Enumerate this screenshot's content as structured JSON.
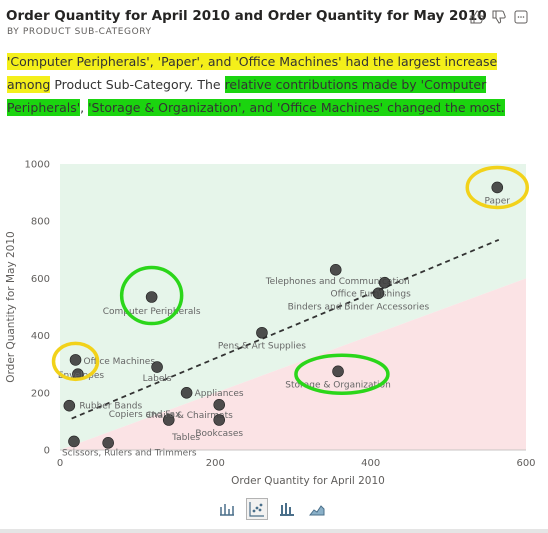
{
  "header": {
    "title": "Order Quantity for April 2010 and Order Quantity for May 2010",
    "subtitle": "BY PRODUCT SUB-CATEGORY",
    "icons": [
      "thumbs-up-icon",
      "thumbs-down-icon",
      "more-options-icon"
    ]
  },
  "narrative": {
    "part1": "'Computer Peripherals', 'Paper', and 'Office Machines' had the largest increase among",
    "part2": "Product Sub-Category",
    "part3": ". The ",
    "part4": "relative contributions made by 'Computer Peripherals'",
    "part5": ", ",
    "part6": "'Storage & Organization', and 'Office Machines' changed the most.",
    "part7": ""
  },
  "colors": {
    "highlight_yellow": "#f4ef1a",
    "highlight_green": "#1bd40f",
    "region_above": "#e6f5ea",
    "region_below": "#fbe3e5",
    "marker": "#3b3b3b",
    "circle_yellow": "#f2d21a",
    "circle_green": "#2bd61a"
  },
  "chart_data": {
    "type": "scatter",
    "title": "Order Quantity for April 2010 and Order Quantity for May 2010",
    "xlabel": "Order Quantity for April 2010",
    "ylabel": "Order Quantity for May 2010",
    "xlim": [
      0,
      600
    ],
    "ylim": [
      0,
      1000
    ],
    "xticks": [
      0,
      200,
      400,
      600
    ],
    "yticks": [
      0,
      200,
      400,
      600,
      800,
      1000
    ],
    "grid": false,
    "trendline": {
      "x": [
        15,
        565
      ],
      "y": [
        110,
        735
      ]
    },
    "points": [
      {
        "label": "Paper",
        "x": 563,
        "y": 918
      },
      {
        "label": "Telephones and Communication",
        "x": 355,
        "y": 630
      },
      {
        "label": "Office Furnishings",
        "x": 418,
        "y": 585
      },
      {
        "label": "Binders and Binder Accessories",
        "x": 410,
        "y": 548
      },
      {
        "label": "Computer Peripherals",
        "x": 118,
        "y": 535
      },
      {
        "label": "Pens & Art Supplies",
        "x": 260,
        "y": 410
      },
      {
        "label": "Office Machines",
        "x": 20,
        "y": 315
      },
      {
        "label": "Envelopes",
        "x": 23,
        "y": 265
      },
      {
        "label": "Labels",
        "x": 125,
        "y": 290
      },
      {
        "label": "Storage & Organization",
        "x": 358,
        "y": 275
      },
      {
        "label": "Appliances",
        "x": 163,
        "y": 200
      },
      {
        "label": "Rubber Bands",
        "x": 12,
        "y": 155
      },
      {
        "label": "Chairs & Chairmats",
        "x": 205,
        "y": 158
      },
      {
        "label": "Copiers and Fax",
        "x": 140,
        "y": 105
      },
      {
        "label": "Bookcases",
        "x": 205,
        "y": 105
      },
      {
        "label": "Scissors, Rulers and Trimmers",
        "x": 18,
        "y": 30
      },
      {
        "label": "Tables",
        "x": 62,
        "y": 25
      }
    ]
  },
  "viz_switcher": {
    "buttons": [
      "bar-chart-icon",
      "scatter-chart-icon",
      "column-chart-icon",
      "area-chart-icon"
    ],
    "active": 1
  }
}
